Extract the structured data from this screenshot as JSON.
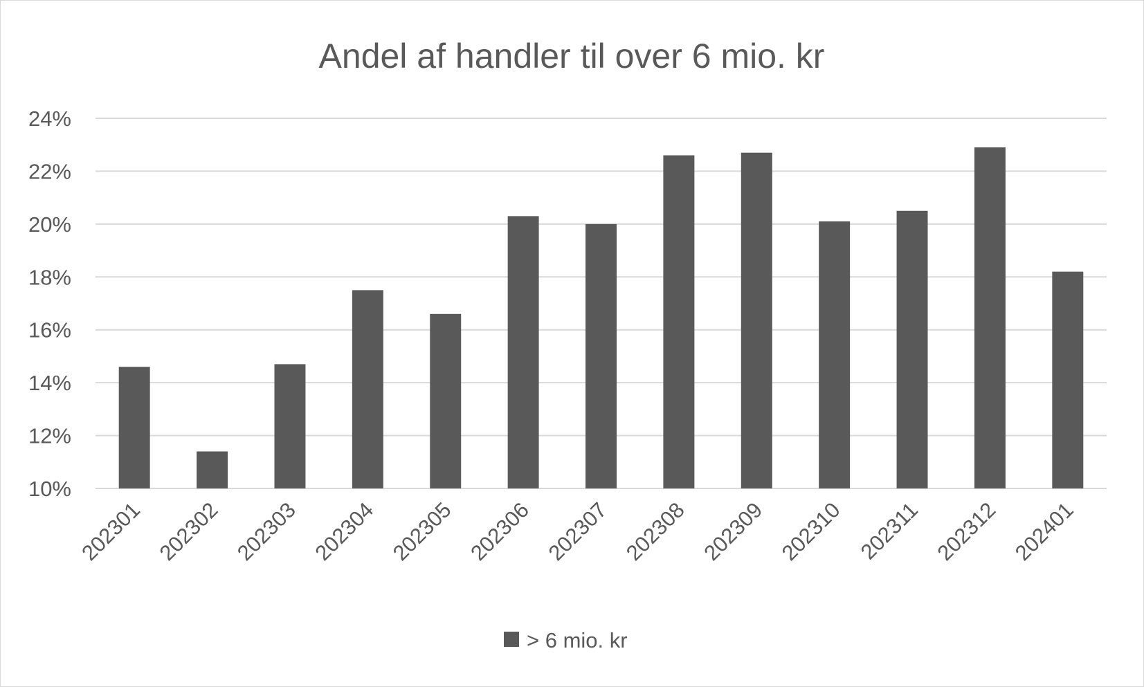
{
  "chart_data": {
    "type": "bar",
    "title": "Andel af handler til over 6 mio. kr",
    "xlabel": "",
    "ylabel": "",
    "categories": [
      "202301",
      "202302",
      "202303",
      "202304",
      "202305",
      "202306",
      "202307",
      "202308",
      "202309",
      "202310",
      "202311",
      "202312",
      "202401"
    ],
    "series": [
      {
        "name": "> 6 mio. kr",
        "color": "#595959",
        "values": [
          14.6,
          11.4,
          14.7,
          17.5,
          16.6,
          20.3,
          20.0,
          22.6,
          22.7,
          20.1,
          20.5,
          22.9,
          18.2
        ]
      }
    ],
    "ylim": [
      10,
      24
    ],
    "yticks": [
      10,
      12,
      14,
      16,
      18,
      20,
      22,
      24
    ],
    "ytick_labels": [
      "10%",
      "12%",
      "14%",
      "16%",
      "18%",
      "20%",
      "22%",
      "24%"
    ],
    "grid": true,
    "legend": "bottom"
  }
}
